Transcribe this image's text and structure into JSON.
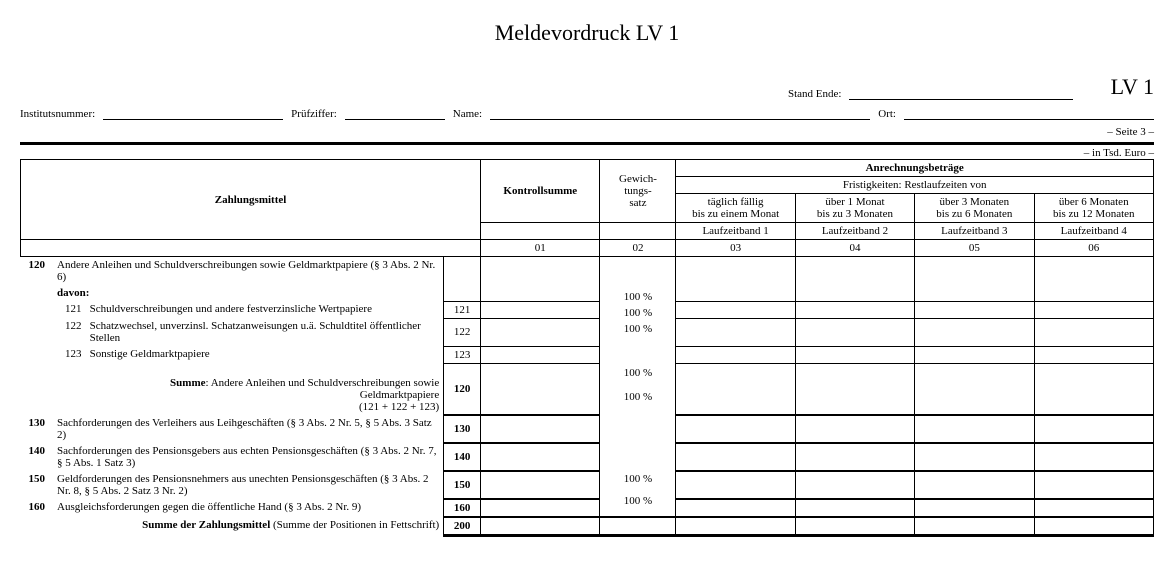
{
  "title": "Meldevordruck LV 1",
  "form_code": "LV 1",
  "meta": {
    "stand_ende": "Stand Ende:",
    "institutsnummer": "Institutsnummer:",
    "pruefziffer": "Prüfziffer:",
    "name": "Name:",
    "ort": "Ort:"
  },
  "page": "– Seite 3 –",
  "unit": "– in Tsd. Euro –",
  "headers": {
    "zahlungsmittel": "Zahlungsmittel",
    "kontrollsumme": "Kontrollsumme",
    "gewichtung": "Gewich-\ntungs-\nsatz",
    "anrechnung": "Anrechnungsbeträge",
    "frist": "Fristigkeiten: Restlaufzeiten von",
    "band1a": "täglich fällig\nbis zu einem Monat",
    "band2a": "über 1 Monat\nbis zu 3 Monaten",
    "band3a": "über 3 Monaten\nbis zu 6 Monaten",
    "band4a": "über 6 Monaten\nbis zu 12 Monaten",
    "band1b": "Laufzeitband 1",
    "band2b": "Laufzeitband 2",
    "band3b": "Laufzeitband 3",
    "band4b": "Laufzeitband 4",
    "c01": "01",
    "c02": "02",
    "c03": "03",
    "c04": "04",
    "c05": "05",
    "c06": "06"
  },
  "rows": {
    "r120": {
      "code": "120",
      "text": "Andere Anleihen und Schuldverschreibungen sowie Geldmarktpapiere (§ 3 Abs. 2 Nr. 6)"
    },
    "davon": "davon:",
    "r121": {
      "code": "121",
      "text": "Schuldverschreibungen und andere festverzinsliche Wertpapiere",
      "rc": "121",
      "gw": "100 %"
    },
    "r122": {
      "code": "122",
      "text": "Schatzwechsel, unverzinsl. Schatzanweisungen u.ä. Schuldtitel öffentlicher Stellen",
      "rc": "122",
      "gw": "100 %"
    },
    "r123": {
      "code": "123",
      "text": "Sonstige Geldmarktpapiere",
      "rc": "123",
      "gw": "100 %"
    },
    "rsumme120": {
      "label": "Summe",
      "text": ": Andere Anleihen und Schuldverschreibungen sowie Geldmarktpapiere\n(121 + 122 + 123)",
      "rc": "120"
    },
    "r130": {
      "code": "130",
      "text": "Sachforderungen des Verleihers aus Leihgeschäften (§ 3 Abs. 2 Nr. 5, § 5 Abs. 3 Satz 2)",
      "rc": "130",
      "gw": "100 %"
    },
    "r140": {
      "code": "140",
      "text": "Sachforderungen des Pensionsgebers aus echten Pensionsgeschäften (§ 3 Abs. 2 Nr. 7, § 5 Abs. 1 Satz 3)",
      "rc": "140",
      "gw": "100 %"
    },
    "r150": {
      "code": "150",
      "text": "Geldforderungen des Pensionsnehmers aus unechten Pensionsgeschäften (§ 3 Abs. 2 Nr. 8, § 5 Abs. 2 Satz 3 Nr. 2)",
      "rc": "150",
      "gw": "100 %"
    },
    "r160": {
      "code": "160",
      "text": "Ausgleichsforderungen gegen die öffentliche Hand (§ 3 Abs. 2 Nr. 9)",
      "rc": "160",
      "gw": "100 %"
    },
    "r200": {
      "label": "Summe der Zahlungsmittel",
      "text": " (Summe der Positionen in Fettschrift)",
      "rc": "200"
    }
  }
}
